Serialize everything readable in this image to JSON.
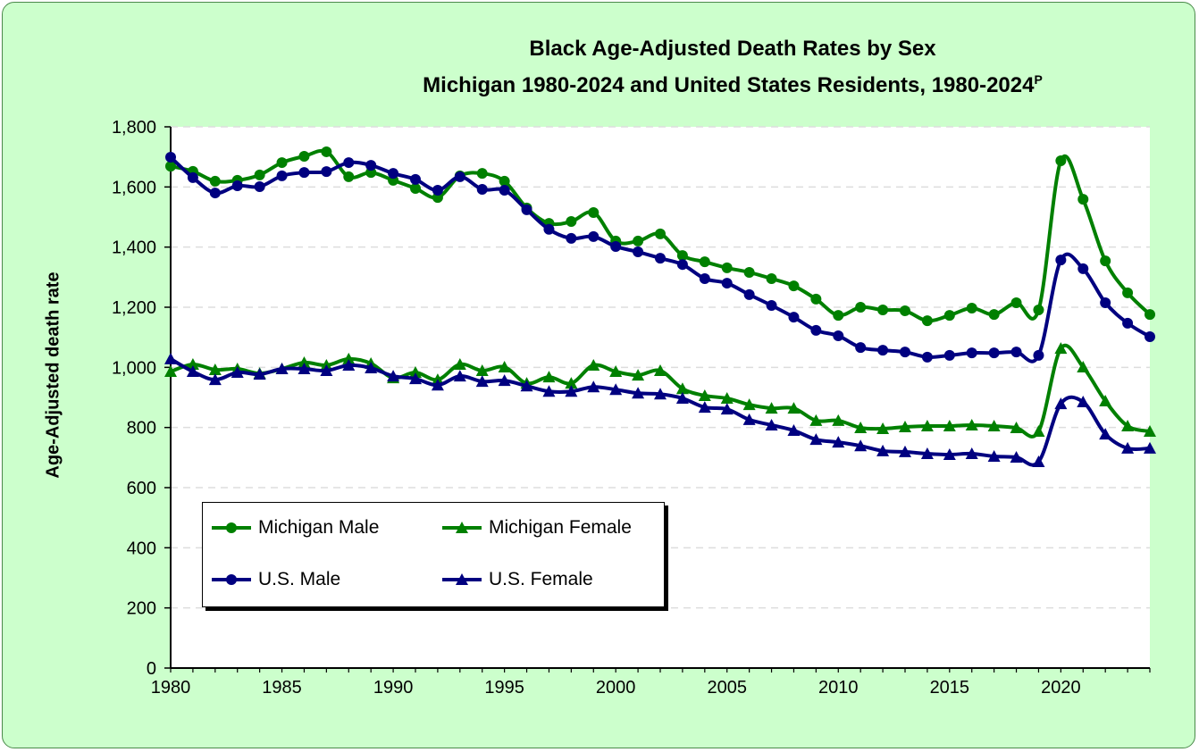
{
  "chart_data": {
    "type": "line",
    "title": "Black Age-Adjusted Death Rates by Sex",
    "subtitle": "Michigan 1980-2024 and United States Residents, 1980-2024",
    "subtitle_superscript": "P",
    "xlabel": "",
    "ylabel": "Age-Adjusted death rate",
    "ylim": [
      0,
      1800
    ],
    "xlim": [
      1980,
      2024
    ],
    "yticks": [
      "0",
      "200",
      "400",
      "600",
      "800",
      "1,000",
      "1,200",
      "1,400",
      "1,600",
      "1,800"
    ],
    "xticks": [
      "1980",
      "1985",
      "1990",
      "1995",
      "2000",
      "2005",
      "2010",
      "2015",
      "2020"
    ],
    "grid": "horizontal dashed",
    "legend_position": "bottom-left",
    "x": [
      1980,
      1981,
      1982,
      1983,
      1984,
      1985,
      1986,
      1987,
      1988,
      1989,
      1990,
      1991,
      1992,
      1993,
      1994,
      1995,
      1996,
      1997,
      1998,
      1999,
      2000,
      2001,
      2002,
      2003,
      2004,
      2005,
      2006,
      2007,
      2008,
      2009,
      2010,
      2011,
      2012,
      2013,
      2014,
      2015,
      2016,
      2017,
      2018,
      2019,
      2020,
      2021,
      2022,
      2023,
      2024
    ],
    "series": [
      {
        "name": "Michigan Male",
        "color": "#008000",
        "marker": "circle",
        "values": [
          1669,
          1652,
          1619,
          1622,
          1640,
          1681,
          1702,
          1717,
          1634,
          1648,
          1622,
          1595,
          1565,
          1637,
          1645,
          1619,
          1530,
          1479,
          1485,
          1515,
          1420,
          1420,
          1444,
          1372,
          1351,
          1331,
          1316,
          1295,
          1271,
          1227,
          1173,
          1200,
          1191,
          1188,
          1155,
          1173,
          1197,
          1176,
          1215,
          1191,
          1687,
          1559,
          1354,
          1248,
          1176
        ]
      },
      {
        "name": "Michigan Female",
        "color": "#008000",
        "marker": "triangle",
        "values": [
          986,
          1010,
          992,
          995,
          980,
          995,
          1016,
          1007,
          1028,
          1013,
          965,
          983,
          959,
          1010,
          989,
          1001,
          947,
          968,
          947,
          1007,
          986,
          974,
          989,
          929,
          906,
          897,
          876,
          864,
          864,
          823,
          823,
          799,
          796,
          802,
          805,
          805,
          808,
          805,
          799,
          787,
          1063,
          1001,
          888,
          805,
          787
        ]
      },
      {
        "name": "U.S. Male",
        "color": "#000080",
        "marker": "circle",
        "values": [
          1699,
          1631,
          1580,
          1604,
          1601,
          1637,
          1648,
          1651,
          1681,
          1672,
          1645,
          1625,
          1589,
          1634,
          1592,
          1589,
          1524,
          1459,
          1429,
          1435,
          1402,
          1384,
          1363,
          1342,
          1295,
          1280,
          1242,
          1206,
          1167,
          1123,
          1105,
          1066,
          1057,
          1051,
          1034,
          1040,
          1048,
          1048,
          1051,
          1040,
          1357,
          1328,
          1215,
          1147,
          1102
        ]
      },
      {
        "name": "U.S. Female",
        "color": "#000080",
        "marker": "triangle",
        "values": [
          1028,
          986,
          959,
          983,
          977,
          995,
          995,
          989,
          1007,
          998,
          971,
          962,
          941,
          971,
          953,
          956,
          938,
          920,
          920,
          935,
          926,
          914,
          911,
          897,
          867,
          861,
          826,
          808,
          790,
          760,
          751,
          739,
          722,
          719,
          713,
          710,
          713,
          704,
          701,
          686,
          879,
          885,
          778,
          731,
          731
        ]
      }
    ]
  },
  "colors": {
    "background": "#ccffcc",
    "plot": "#ffffff",
    "michigan": "#008000",
    "us": "#000080"
  }
}
